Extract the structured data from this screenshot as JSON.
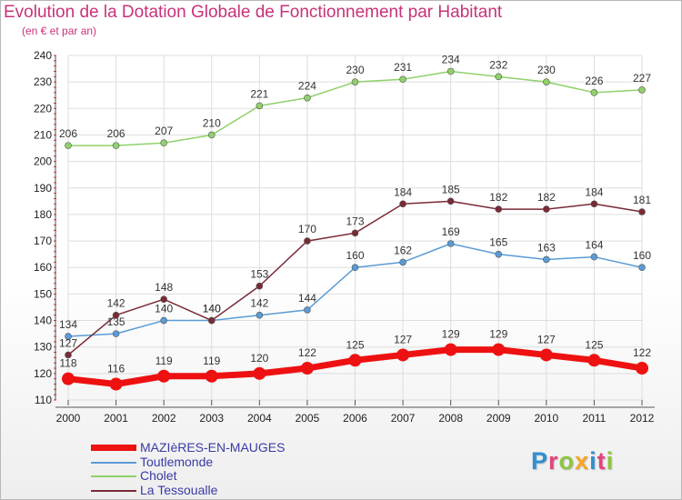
{
  "header": {
    "title": "Evolution de la Dotation Globale de Fonctionnement par Habitant",
    "subtitle": "(en € et par an)"
  },
  "colors": {
    "accent": "#c8327a",
    "grid": "#dddddd",
    "axis": "#555555",
    "legend_text": "#3a3aa6"
  },
  "logo": {
    "text": "Proxiti",
    "letters": [
      {
        "ch": "P",
        "color": "#2f8fd0"
      },
      {
        "ch": "r",
        "color": "#e0457b"
      },
      {
        "ch": "o",
        "color": "#8cc63f"
      },
      {
        "ch": "x",
        "color": "#f5a623"
      },
      {
        "ch": "i",
        "color": "#2f8fd0"
      },
      {
        "ch": "t",
        "color": "#e0457b"
      },
      {
        "ch": "i",
        "color": "#8cc63f"
      }
    ]
  },
  "chart_data": {
    "type": "line",
    "title": "Evolution de la Dotation Globale de Fonctionnement par Habitant",
    "subtitle": "(en € et par an)",
    "xlabel": "",
    "ylabel": "",
    "x": [
      "2000",
      "2001",
      "2002",
      "2003",
      "2004",
      "2005",
      "2006",
      "2007",
      "2008",
      "2009",
      "2010",
      "2011",
      "2012"
    ],
    "ylim": [
      110,
      240
    ],
    "yticks": [
      110,
      120,
      130,
      140,
      150,
      160,
      170,
      180,
      190,
      200,
      210,
      220,
      230,
      240
    ],
    "grid": true,
    "legend_position": "bottom-left",
    "series": [
      {
        "name": "MAZIèRES-EN-MAUGES",
        "color": "#ee1111",
        "emphasis": true,
        "values": [
          118,
          116,
          119,
          119,
          120,
          122,
          125,
          127,
          129,
          129,
          127,
          125,
          122
        ]
      },
      {
        "name": "Toutlemonde",
        "color": "#5b9bd5",
        "emphasis": false,
        "values": [
          134,
          135,
          140,
          140,
          142,
          144,
          160,
          162,
          169,
          165,
          163,
          164,
          160
        ]
      },
      {
        "name": "Cholet",
        "color": "#8fd16a",
        "emphasis": false,
        "values": [
          206,
          206,
          207,
          210,
          221,
          224,
          230,
          231,
          234,
          232,
          230,
          226,
          227
        ]
      },
      {
        "name": "La Tessoualle",
        "color": "#7a2a36",
        "emphasis": false,
        "values": [
          127,
          142,
          148,
          140,
          153,
          170,
          173,
          184,
          185,
          182,
          182,
          184,
          181
        ]
      }
    ]
  }
}
